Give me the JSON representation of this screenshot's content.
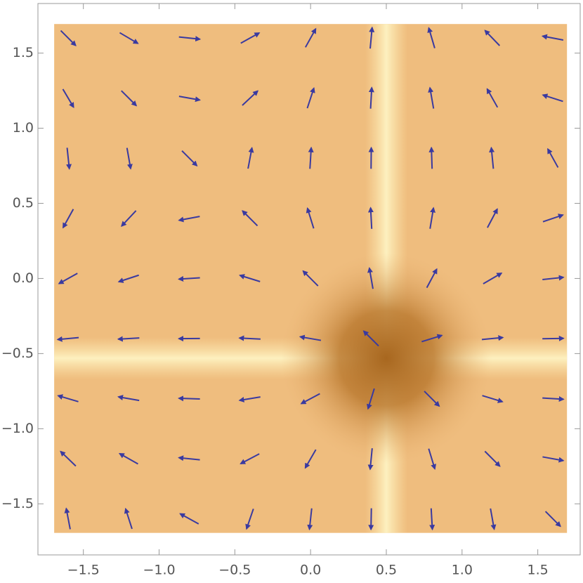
{
  "chart_data": {
    "type": "vector",
    "xlim": [
      -1.8,
      1.78
    ],
    "ylim": [
      -1.84,
      1.83
    ],
    "xticks": [
      {
        "value": -1.5,
        "label": "−1.5"
      },
      {
        "value": -1.0,
        "label": "−1.0"
      },
      {
        "value": -0.5,
        "label": "−0.5"
      },
      {
        "value": 0.0,
        "label": "0.0"
      },
      0.5,
      {
        "value": 1.0,
        "label": "1.0"
      },
      1.5
    ],
    "yticks": [
      {
        "value": -1.5,
        "label": "−1.5"
      },
      {
        "value": -1.0,
        "label": "−1.0"
      },
      {
        "value": -0.5,
        "label": "−0.5"
      },
      {
        "value": 0.0,
        "label": "0.0"
      },
      0.5,
      {
        "value": 1.0,
        "label": "1.0"
      },
      1.5
    ],
    "color": "#3a3aa0",
    "x": [
      -1.6,
      -1.2,
      -0.8,
      -0.4,
      0,
      0.4,
      0.8,
      1.2,
      1.6
    ],
    "y": [
      -1.6,
      -1.2,
      -0.8,
      -0.4,
      0,
      0.4,
      0.8,
      1.2,
      1.6
    ],
    "u": [
      [
        -0.61,
        -0.49,
        -0.38,
        -0.26,
        -0.15,
        -0.03,
        0.09,
        0.2,
        0.32
      ],
      [
        -2.12,
        -1.72,
        -1.31,
        -0.91,
        -0.51,
        -0.1,
        0.3,
        0.71,
        1.11
      ],
      [
        -2.96,
        -2.4,
        -1.83,
        -1.27,
        -0.71,
        -0.14,
        0.42,
        0.99,
        1.55
      ],
      [
        -3.13,
        -2.53,
        -1.94,
        -1.34,
        -0.75,
        -0.15,
        0.45,
        1.04,
        1.64
      ],
      [
        -2.63,
        -2.13,
        -1.63,
        -1.13,
        -0.63,
        -0.13,
        0.38,
        0.88,
        1.38
      ],
      [
        -1.45,
        -1.17,
        -0.9,
        -0.62,
        -0.35,
        -0.07,
        0.21,
        0.48,
        0.76
      ],
      [
        0.4,
        0.32,
        0.25,
        0.17,
        0.1,
        0.02,
        -0.06,
        -0.13,
        -0.21
      ],
      [
        2.92,
        2.36,
        1.81,
        1.25,
        0.7,
        0.14,
        -0.42,
        -0.97,
        -1.53
      ],
      [
        6.11,
        4.95,
        3.78,
        2.62,
        1.46,
        0.29,
        -0.87,
        -2.04,
        -3.2
      ]
    ],
    "v": [
      [
        3.2,
        1.53,
        0.21,
        -0.76,
        -1.38,
        -1.64,
        -1.55,
        -1.11,
        -0.32
      ],
      [
        2.04,
        0.97,
        0.13,
        -0.48,
        -0.88,
        -1.04,
        -0.99,
        -0.71,
        -0.2
      ],
      [
        0.87,
        0.42,
        0.06,
        -0.21,
        -0.38,
        -0.45,
        -0.42,
        -0.3,
        -0.09
      ],
      [
        -0.29,
        -0.14,
        -0.02,
        0.07,
        0.13,
        0.15,
        0.14,
        0.1,
        0.03
      ],
      [
        -1.46,
        -0.7,
        -0.1,
        0.35,
        0.63,
        0.75,
        0.71,
        0.51,
        0.15
      ],
      [
        -2.62,
        -1.25,
        -0.17,
        0.62,
        1.13,
        1.34,
        1.27,
        0.91,
        0.26
      ],
      [
        -3.78,
        -1.81,
        -0.25,
        0.9,
        1.63,
        1.94,
        1.83,
        1.31,
        0.38
      ],
      [
        -4.95,
        -2.36,
        -0.32,
        1.17,
        2.13,
        2.53,
        2.4,
        1.72,
        0.49
      ],
      [
        -6.11,
        -2.92,
        -0.4,
        1.45,
        2.63,
        3.13,
        2.96,
        2.12,
        0.61
      ]
    ]
  }
}
